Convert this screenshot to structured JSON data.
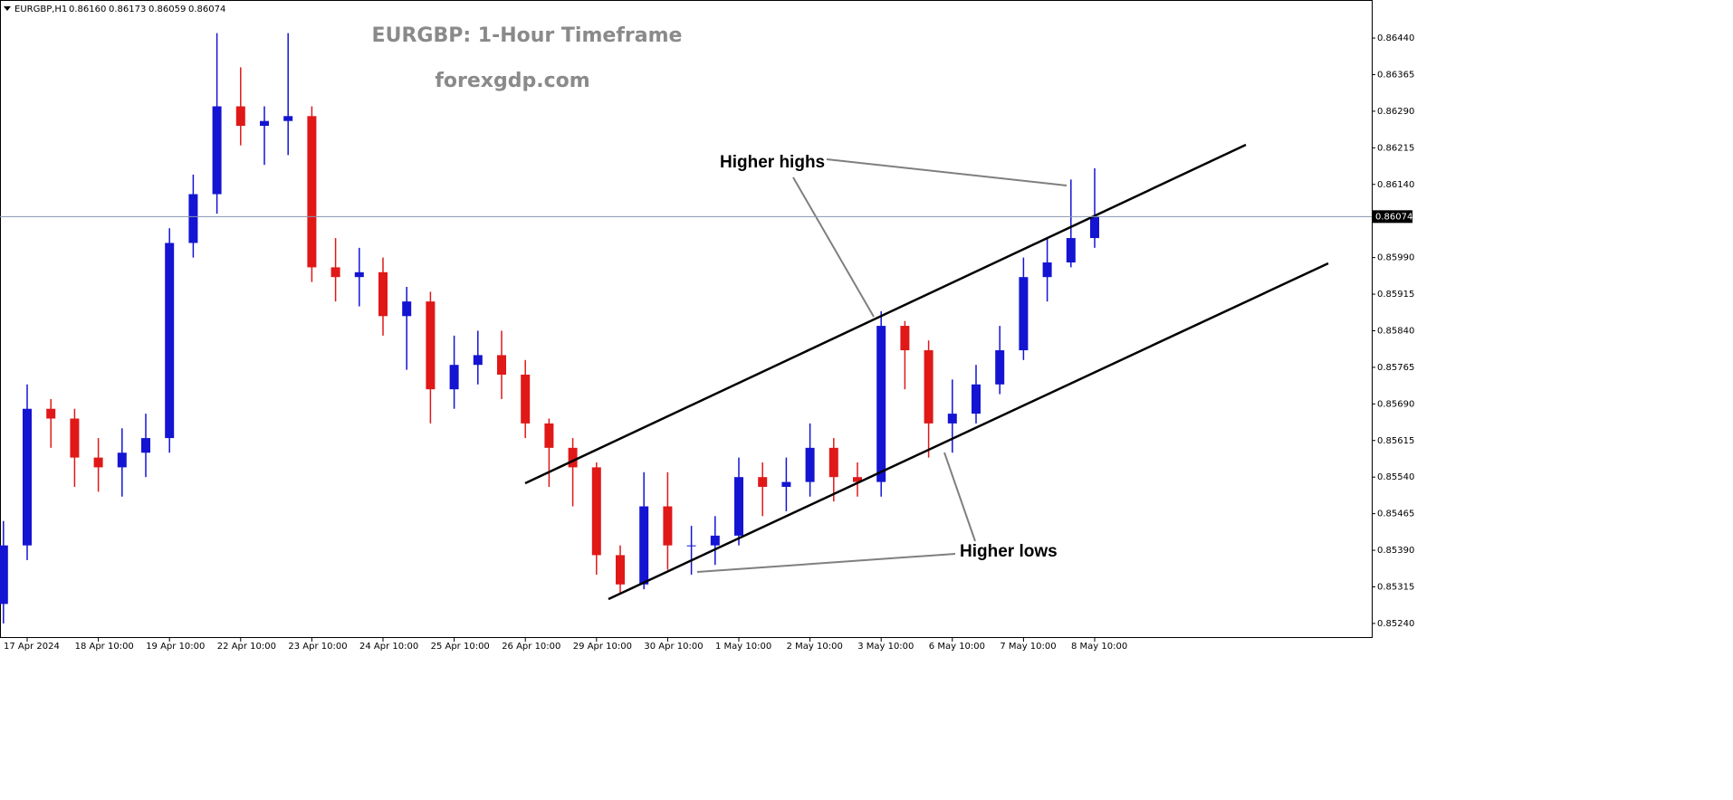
{
  "header": {
    "symbol": "EURGBP,H1",
    "ohlc": [
      "0.86160",
      "0.86173",
      "0.86059",
      "0.86074"
    ]
  },
  "chart_data": {
    "type": "candlestick",
    "title": "EURGBP: 1-Hour Timeframe",
    "subtitle": "forexgdp.com",
    "annotations": [
      "Higher highs",
      "Higher lows"
    ],
    "up_color": "#1414d2",
    "down_color": "#e01818",
    "categories": [
      null,
      "17 Apr 2024",
      null,
      null,
      "18 Apr 10:00",
      null,
      null,
      "19 Apr 10:00",
      null,
      null,
      "22 Apr 10:00",
      null,
      null,
      "23 Apr 10:00",
      null,
      null,
      "24 Apr 10:00",
      null,
      null,
      "25 Apr 10:00",
      null,
      null,
      "26 Apr 10:00",
      null,
      null,
      "29 Apr 10:00",
      null,
      null,
      "30 Apr 10:00",
      null,
      null,
      "1 May 10:00",
      null,
      null,
      "2 May 10:00",
      null,
      null,
      "3 May 10:00",
      null,
      null,
      "6 May 10:00",
      null,
      null,
      "7 May 10:00",
      null,
      null,
      "8 May 10:00"
    ],
    "open": [
      0.8528,
      0.854,
      0.8568,
      0.8566,
      0.8558,
      0.8556,
      0.8559,
      0.8562,
      0.8602,
      0.8612,
      0.863,
      0.8626,
      0.8627,
      0.8628,
      0.8597,
      0.8595,
      0.8596,
      0.8587,
      0.859,
      0.8572,
      0.8577,
      0.8579,
      0.8575,
      0.8565,
      0.856,
      0.8556,
      0.8538,
      0.8532,
      0.8548,
      0.854,
      0.854,
      0.8542,
      0.8554,
      0.8552,
      0.8553,
      0.856,
      0.8554,
      0.8553,
      0.8585,
      0.858,
      0.8565,
      0.8567,
      0.8573,
      0.858,
      0.8595,
      0.8598,
      0.8603
    ],
    "high": [
      0.8545,
      0.8573,
      0.857,
      0.8568,
      0.8562,
      0.8564,
      0.8567,
      0.8605,
      0.8616,
      0.8645,
      0.8638,
      0.863,
      0.8645,
      0.863,
      0.8603,
      0.8601,
      0.8599,
      0.8593,
      0.8592,
      0.8583,
      0.8584,
      0.8584,
      0.8578,
      0.8566,
      0.8562,
      0.8557,
      0.854,
      0.8555,
      0.8555,
      0.8544,
      0.8546,
      0.8558,
      0.8557,
      0.8558,
      0.8565,
      0.8562,
      0.8557,
      0.8588,
      0.8586,
      0.8582,
      0.8574,
      0.8577,
      0.8585,
      0.8599,
      0.8603,
      0.8615,
      0.86173
    ],
    "low": [
      0.8524,
      0.8537,
      0.856,
      0.8552,
      0.8551,
      0.855,
      0.8554,
      0.8559,
      0.8599,
      0.8608,
      0.8622,
      0.8618,
      0.862,
      0.8594,
      0.859,
      0.8589,
      0.8583,
      0.8576,
      0.8565,
      0.8568,
      0.8573,
      0.857,
      0.8562,
      0.8552,
      0.8548,
      0.8534,
      0.853,
      0.8531,
      0.8535,
      0.8534,
      0.8536,
      0.854,
      0.8546,
      0.8547,
      0.855,
      0.8549,
      0.855,
      0.855,
      0.8572,
      0.8558,
      0.8559,
      0.8565,
      0.8571,
      0.8578,
      0.859,
      0.8597,
      0.8601
    ],
    "close": [
      0.854,
      0.8568,
      0.8566,
      0.8558,
      0.8556,
      0.8559,
      0.8562,
      0.8602,
      0.8612,
      0.863,
      0.8626,
      0.8627,
      0.8628,
      0.8597,
      0.8595,
      0.8596,
      0.8587,
      0.859,
      0.8572,
      0.8577,
      0.8579,
      0.8575,
      0.8565,
      0.856,
      0.8556,
      0.8538,
      0.8532,
      0.8548,
      0.854,
      0.854,
      0.8542,
      0.8554,
      0.8552,
      0.8553,
      0.856,
      0.8554,
      0.8553,
      0.8585,
      0.858,
      0.8565,
      0.8567,
      0.8573,
      0.858,
      0.8595,
      0.8598,
      0.8603,
      0.86074
    ],
    "current_price": {
      "value": 0.86074,
      "label": "0.86074"
    },
    "ylim": [
      0.85212,
      0.86518
    ],
    "yticks": [
      {
        "value": 0.8644,
        "label": "0.86440"
      },
      0.86365,
      {
        "value": 0.8629,
        "label": "0.86290"
      },
      0.86215,
      {
        "value": 0.8614,
        "label": "0.86140"
      },
      {
        "value": 0.8599,
        "label": "0.85990"
      },
      0.85915,
      {
        "value": 0.8584,
        "label": "0.85840"
      },
      0.85765,
      {
        "value": 0.8569,
        "label": "0.85690"
      },
      0.85615,
      {
        "value": 0.8554,
        "label": "0.85540"
      },
      0.85465,
      {
        "value": 0.8539,
        "label": "0.85390"
      },
      0.85315,
      {
        "value": 0.8524,
        "label": "0.85240"
      }
    ]
  }
}
